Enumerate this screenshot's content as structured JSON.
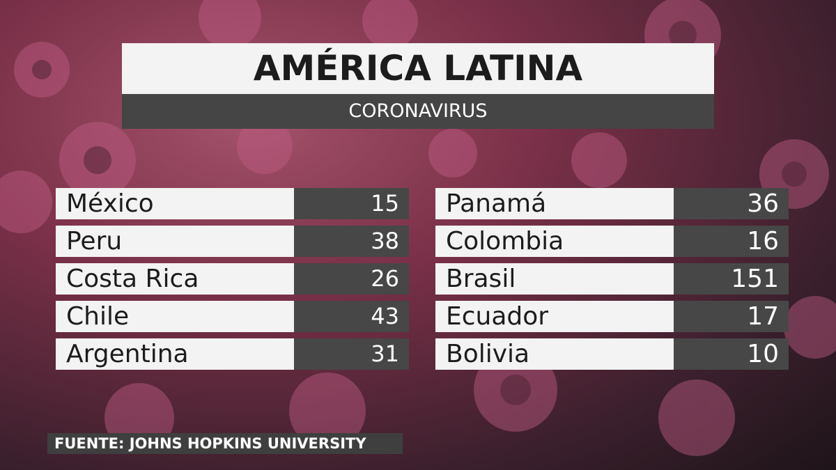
{
  "header": {
    "title": "AMÉRICA LATINA",
    "subtitle": "CORONAVIRUS"
  },
  "table": {
    "columns": [
      [
        {
          "country": "México",
          "cases": 15
        },
        {
          "country": "Peru",
          "cases": 38
        },
        {
          "country": "Costa Rica",
          "cases": 26
        },
        {
          "country": "Chile",
          "cases": 43
        },
        {
          "country": "Argentina",
          "cases": 31
        }
      ],
      [
        {
          "country": "Panamá",
          "cases": 36
        },
        {
          "country": "Colombia",
          "cases": 16
        },
        {
          "country": "Brasil",
          "cases": 151
        },
        {
          "country": "Ecuador",
          "cases": 17
        },
        {
          "country": "Bolivia",
          "cases": 10
        }
      ]
    ]
  },
  "source": "FUENTE: JOHNS HOPKINS UNIVERSITY"
}
